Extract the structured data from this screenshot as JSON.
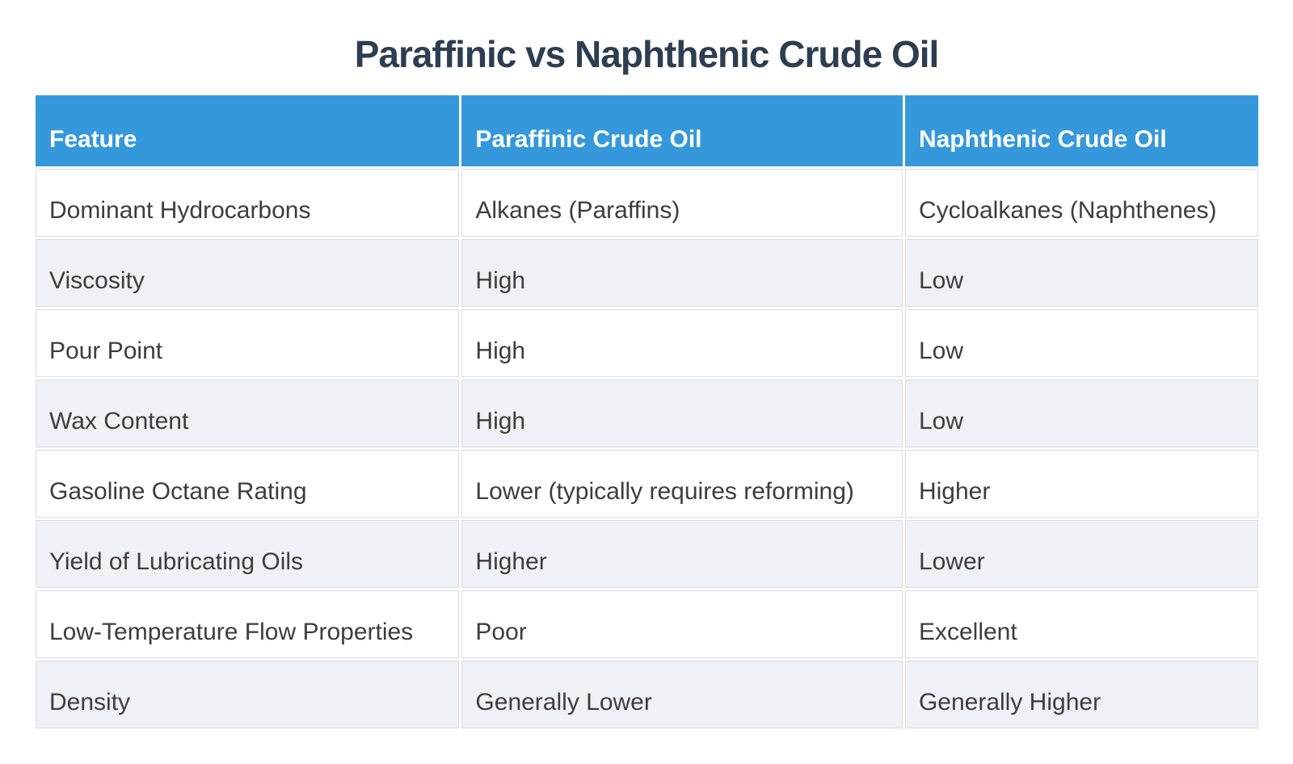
{
  "title": "Paraffinic vs Naphthenic Crude Oil",
  "colors": {
    "header-bg": "#3498db",
    "header-text": "#ffffff",
    "row-bg": "#ffffff",
    "row-alt-bg": "#eef1f6",
    "border": "#dcdcdc",
    "title-text": "#2c3e50",
    "body-text": "#3d3d3d"
  },
  "chart_data": {
    "type": "table",
    "title": "Paraffinic vs Naphthenic Crude Oil",
    "columns": [
      "Feature",
      "Paraffinic Crude Oil",
      "Naphthenic Crude Oil"
    ],
    "rows": [
      [
        "Dominant Hydrocarbons",
        "Alkanes (Paraffins)",
        "Cycloalkanes (Naphthenes)"
      ],
      [
        "Viscosity",
        "High",
        "Low"
      ],
      [
        "Pour Point",
        "High",
        "Low"
      ],
      [
        "Wax Content",
        "High",
        "Low"
      ],
      [
        "Gasoline Octane Rating",
        "Lower (typically requires reforming)",
        "Higher"
      ],
      [
        "Yield of Lubricating Oils",
        "Higher",
        "Lower"
      ],
      [
        "Low-Temperature Flow Properties",
        "Poor",
        "Excellent"
      ],
      [
        "Density",
        "Generally Lower",
        "Generally Higher"
      ]
    ]
  }
}
